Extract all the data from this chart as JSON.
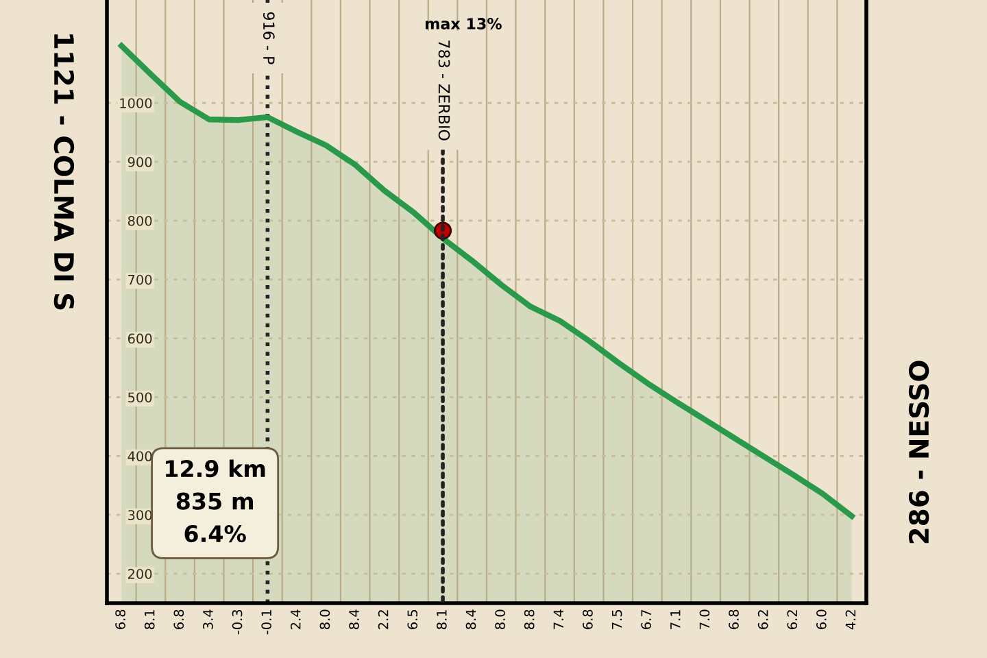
{
  "chart_data": {
    "type": "area",
    "categories": [
      "6.8",
      "8.1",
      "6.8",
      "3.4",
      "-0.3",
      "-0.1",
      "2.4",
      "8.0",
      "8.4",
      "2.2",
      "6.5",
      "8.1",
      "8.4",
      "8.0",
      "8.8",
      "7.4",
      "6.8",
      "7.5",
      "6.7",
      "7.1",
      "7.0",
      "6.8",
      "6.2",
      "6.2",
      "6.0",
      "4.2"
    ],
    "series": [
      {
        "color": "#2a9a4a",
        "values": [
          1097,
          1049,
          1002,
          972,
          971,
          976,
          951,
          928,
          895,
          851,
          814,
          770,
          732,
          691,
          654,
          630,
          596,
          559,
          524,
          492,
          461,
          430,
          399,
          368,
          336,
          298
        ]
      },
      {
        "type": "scatter",
        "color": "#c00000",
        "values": [
          null,
          null,
          null,
          null,
          null,
          null,
          null,
          null,
          null,
          null,
          null,
          783,
          null,
          null,
          null,
          null,
          null,
          null,
          null,
          null,
          null,
          null,
          null,
          null,
          null,
          null
        ]
      }
    ],
    "ylim": [
      150,
      1175
    ],
    "yticks": [
      200,
      300,
      400,
      500,
      600,
      700,
      800,
      900,
      1000
    ],
    "grid": true,
    "ref_lines": [
      {
        "axis": "x",
        "value": "-0.1",
        "label": "916 - P",
        "line_style": "dotted",
        "color": "#222222"
      }
    ],
    "annotations": [
      "max 13%",
      "12.9 km\n835 m\n6.4%",
      "1121 - COLMA DI S",
      "286 - NESSO",
      "783 - ZERBIO"
    ]
  }
}
